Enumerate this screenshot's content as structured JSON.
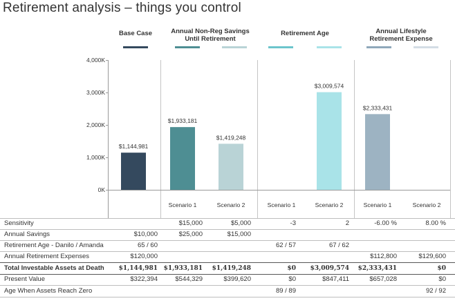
{
  "page": {
    "title": "Retirement analysis – things you control"
  },
  "groups": [
    {
      "id": "base",
      "label": "Base Case",
      "swatches": [
        "#34495e"
      ]
    },
    {
      "id": "savings",
      "label": "Annual Non-Reg Savings\nUntil Retirement",
      "swatches": [
        "#4e8e93",
        "#b9d3d6"
      ]
    },
    {
      "id": "age",
      "label": "Retirement Age",
      "swatches": [
        "#6cc5cc",
        "#a9e3e8"
      ]
    },
    {
      "id": "expense",
      "label": "Annual Lifestyle\nRetirement Expense",
      "swatches": [
        "#8fa8ba",
        "#d3dde5"
      ]
    }
  ],
  "chart_data": {
    "type": "bar",
    "ylim": [
      0,
      4000000
    ],
    "yticks": [
      {
        "value": 0,
        "label": "0K"
      },
      {
        "value": 1000000,
        "label": "1,000K"
      },
      {
        "value": 2000000,
        "label": "2,000K"
      },
      {
        "value": 3000000,
        "label": "3,000K"
      },
      {
        "value": 4000000,
        "label": "4,000K"
      }
    ],
    "grid": false,
    "bars": [
      {
        "group": "base",
        "category": "",
        "value": 1144981,
        "label": "$1,144,981",
        "color": "#34495e"
      },
      {
        "group": "savings",
        "category": "Scenario 1",
        "value": 1933181,
        "label": "$1,933,181",
        "color": "#4e8e93"
      },
      {
        "group": "savings",
        "category": "Scenario 2",
        "value": 1419248,
        "label": "$1,419,248",
        "color": "#b9d3d6"
      },
      {
        "group": "age",
        "category": "Scenario 1",
        "value": 0,
        "label": "",
        "color": "#6cc5cc"
      },
      {
        "group": "age",
        "category": "Scenario 2",
        "value": 3009574,
        "label": "$3,009,574",
        "color": "#a9e3e8"
      },
      {
        "group": "expense",
        "category": "Scenario 1",
        "value": 2333431,
        "label": "$2,333,431",
        "color": "#9db3c2"
      },
      {
        "group": "expense",
        "category": "Scenario 2",
        "value": 0,
        "label": "",
        "color": "#d3dde5"
      }
    ]
  },
  "table": {
    "rows": [
      {
        "label": "Sensitivity",
        "bold": false,
        "cells": [
          "",
          "$15,000",
          "$5,000",
          "-3",
          "2",
          "-6.00 %",
          "8.00 %"
        ]
      },
      {
        "label": "Annual Savings",
        "bold": false,
        "cells": [
          "$10,000",
          "$25,000",
          "$15,000",
          "",
          "",
          "",
          ""
        ]
      },
      {
        "label": "Retirement Age - Danilo / Amanda",
        "bold": false,
        "cells": [
          "65 / 60",
          "",
          "",
          "62 / 57",
          "67 / 62",
          "",
          ""
        ]
      },
      {
        "label": "Annual Retirement Expenses",
        "bold": false,
        "cells": [
          "$120,000",
          "",
          "",
          "",
          "",
          "$112,800",
          "$129,600"
        ]
      },
      {
        "label": "Total Investable Assets at Death",
        "bold": true,
        "cells": [
          "$1,144,981",
          "$1,933,181",
          "$1,419,248",
          "$0",
          "$3,009,574",
          "$2,333,431",
          "$0"
        ]
      },
      {
        "label": "Present Value",
        "bold": false,
        "cells": [
          "$322,394",
          "$544,329",
          "$399,620",
          "$0",
          "$847,411",
          "$657,028",
          "$0"
        ]
      },
      {
        "label": "Age When Assets Reach Zero",
        "bold": false,
        "cells": [
          "",
          "",
          "",
          "89 / 89",
          "",
          "",
          "92 / 92"
        ]
      }
    ]
  }
}
